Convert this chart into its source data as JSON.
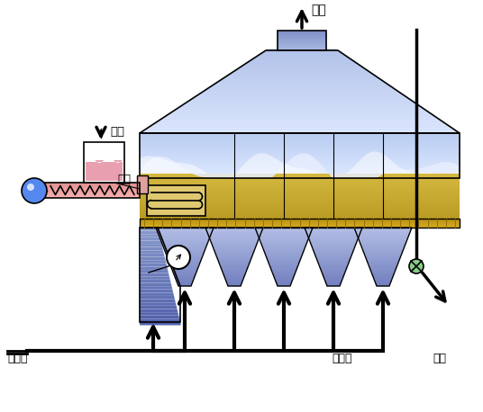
{
  "bg_color": "#ffffff",
  "labels": {
    "wei_liao": "滤料",
    "zheng_qi": "蒸汽",
    "re_kong_qi": "热空气",
    "leng_kong_qi": "冷空气",
    "gan_pin": "干品",
    "wei_qi": "尾气"
  },
  "colors": {
    "chamber_blue_light": "#c8d5f5",
    "chamber_blue_dark": "#8899cc",
    "bed_tan_light": "#e8d090",
    "bed_tan_dark": "#c8a030",
    "hopper_blue": "#9ab0dd",
    "plenum_blue": "#7080bb",
    "pink_light": "#f0b0b0",
    "pink_dark": "#e89090",
    "ball_blue": "#5588ee",
    "valve_green": "#88cc88",
    "foam_white": "#eef0ff"
  }
}
